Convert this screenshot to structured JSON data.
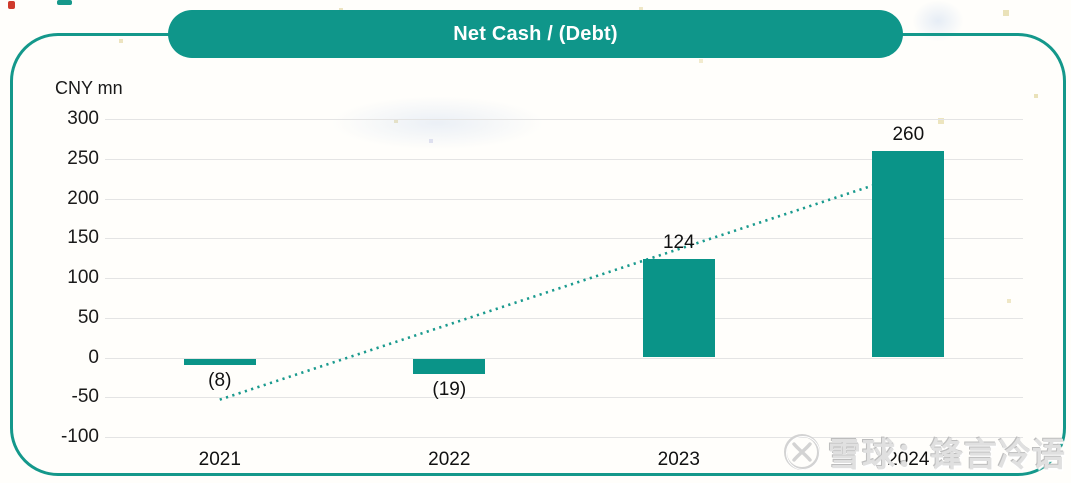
{
  "header": {
    "title": "Net Cash / (Debt)"
  },
  "axis": {
    "unit_label": "CNY mn"
  },
  "watermark": {
    "logo": "xueqiu-logo",
    "text": "雪球：锋言冷语"
  },
  "colors": {
    "teal_bar": "#0a9488",
    "teal_frame": "#14988b",
    "teal_pill": "#0f968a",
    "trendline": "#1a9a8e",
    "gridline": "#e4e4e4",
    "watermark_gray": "#e0e0e0"
  },
  "chart_data": {
    "type": "bar",
    "title": "Net Cash / (Debt)",
    "ylabel": "CNY mn",
    "categories": [
      "2021",
      "2022",
      "2023",
      "2024"
    ],
    "values": [
      -8,
      -19,
      124,
      260
    ],
    "data_labels": [
      "(8)",
      "(19)",
      "124",
      "260"
    ],
    "ylim": [
      -100,
      300
    ],
    "yticks": [
      300,
      250,
      200,
      150,
      100,
      50,
      0,
      -50,
      -100
    ],
    "grid": true,
    "legend": false,
    "bar_color": "#0a9488",
    "trendline": {
      "style": "dotted",
      "color": "#1a9a8e",
      "start_value": -53,
      "end_value": 231
    }
  }
}
